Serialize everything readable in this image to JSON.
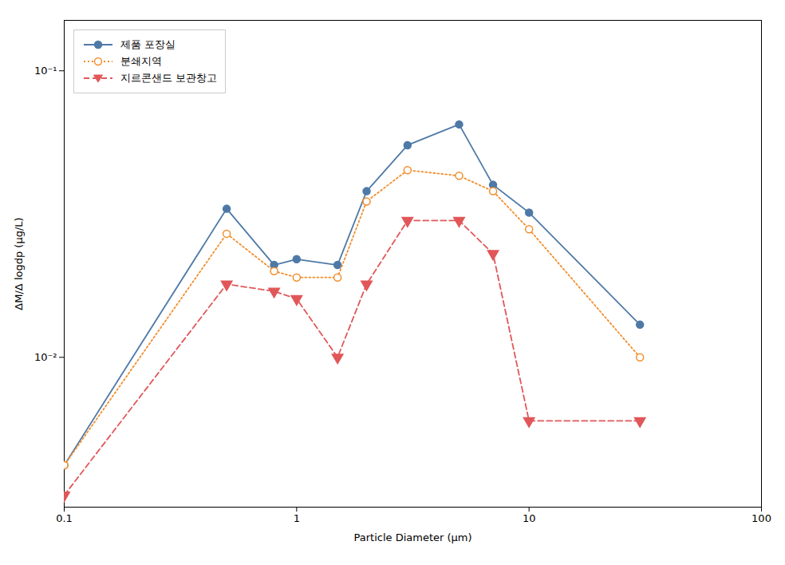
{
  "chart_data": {
    "type": "line",
    "xlabel": "Particle Diameter (μm)",
    "ylabel": "ΔM/Δ logdp (μg/L)",
    "log": true,
    "xlim": [
      0.1,
      100
    ],
    "ylim": [
      0.003,
      0.15
    ],
    "xticks": [
      0.1,
      1,
      10,
      100
    ],
    "yticks": [
      {
        "value": 0.01,
        "label": "10⁻²"
      },
      {
        "value": 0.1,
        "label": "10⁻¹"
      }
    ],
    "grid": false,
    "legend": "upper left",
    "x": [
      0.1,
      0.5,
      0.8,
      1.0,
      1.5,
      2.0,
      3.0,
      5.0,
      7.0,
      10.0,
      30.0
    ],
    "series": [
      {
        "name": "제품 포장실",
        "marker": "circle",
        "line_style": "solid",
        "values": [
          0.0042,
          0.033,
          0.021,
          0.022,
          0.021,
          0.038,
          0.055,
          0.065,
          0.04,
          0.032,
          0.013
        ]
      },
      {
        "name": "분쇄지역",
        "marker": "circle_open",
        "line_style": "dotted",
        "values": [
          0.0042,
          0.027,
          0.02,
          0.019,
          0.019,
          0.035,
          0.045,
          0.043,
          0.038,
          0.028,
          0.01
        ]
      },
      {
        "name": "지르콘샌드 보관창고",
        "marker": "triangle_down",
        "line_style": "dashed",
        "values": [
          0.0033,
          0.018,
          0.017,
          0.016,
          0.01,
          0.018,
          0.03,
          0.03,
          0.023,
          0.006,
          0.006
        ]
      }
    ]
  }
}
